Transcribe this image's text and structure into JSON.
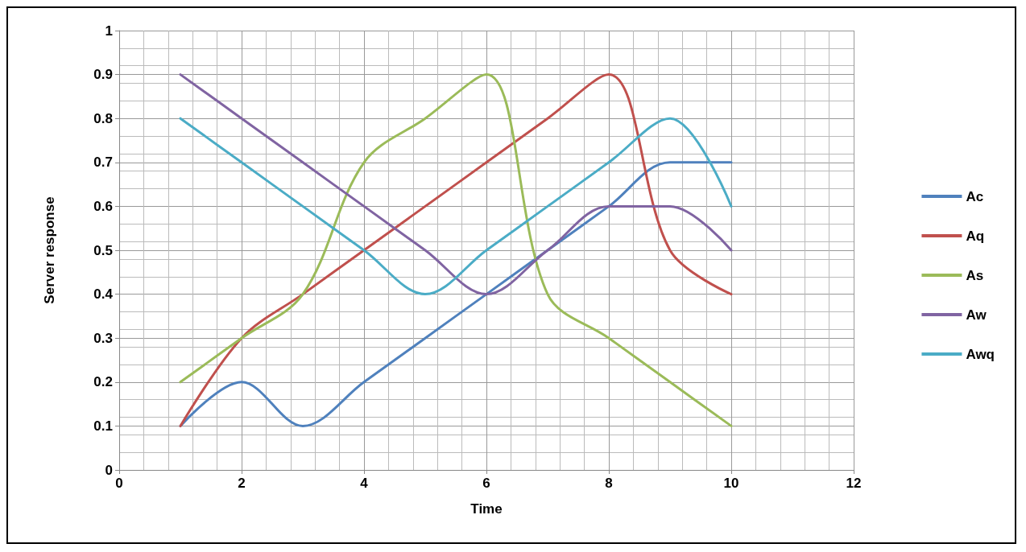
{
  "chart_data": {
    "type": "line",
    "xlabel": "Time",
    "ylabel": "Server response",
    "x": [
      1,
      2,
      3,
      4,
      5,
      6,
      7,
      8,
      9,
      10
    ],
    "series": [
      {
        "name": "Ac",
        "color": "#4f81bd",
        "values": [
          0.1,
          0.2,
          0.1,
          0.2,
          0.3,
          0.4,
          0.5,
          0.6,
          0.7,
          0.7
        ]
      },
      {
        "name": "Aq",
        "color": "#c0504d",
        "values": [
          0.1,
          0.3,
          0.4,
          0.5,
          0.6,
          0.7,
          0.8,
          0.9,
          0.5,
          0.4
        ]
      },
      {
        "name": "As",
        "color": "#9bbb59",
        "values": [
          0.2,
          0.3,
          0.4,
          0.7,
          0.8,
          0.9,
          0.4,
          0.3,
          0.2,
          0.1
        ]
      },
      {
        "name": "Aw",
        "color": "#8064a2",
        "values": [
          0.9,
          0.8,
          0.7,
          0.6,
          0.5,
          0.4,
          0.5,
          0.6,
          0.6,
          0.5
        ]
      },
      {
        "name": "Awq",
        "color": "#4bacc6",
        "values": [
          0.8,
          0.7,
          0.6,
          0.5,
          0.4,
          0.5,
          0.6,
          0.7,
          0.8,
          0.6
        ]
      }
    ],
    "xlim": [
      0,
      12
    ],
    "xticks": [
      0,
      2,
      4,
      6,
      8,
      10,
      12
    ],
    "ylim": [
      0,
      1
    ],
    "yticks": [
      0,
      0.1,
      0.2,
      0.3,
      0.4,
      0.5,
      0.6,
      0.7,
      0.8,
      0.9,
      1
    ],
    "grid": true,
    "legend": "right",
    "marker": "none",
    "line_style": "solid"
  }
}
